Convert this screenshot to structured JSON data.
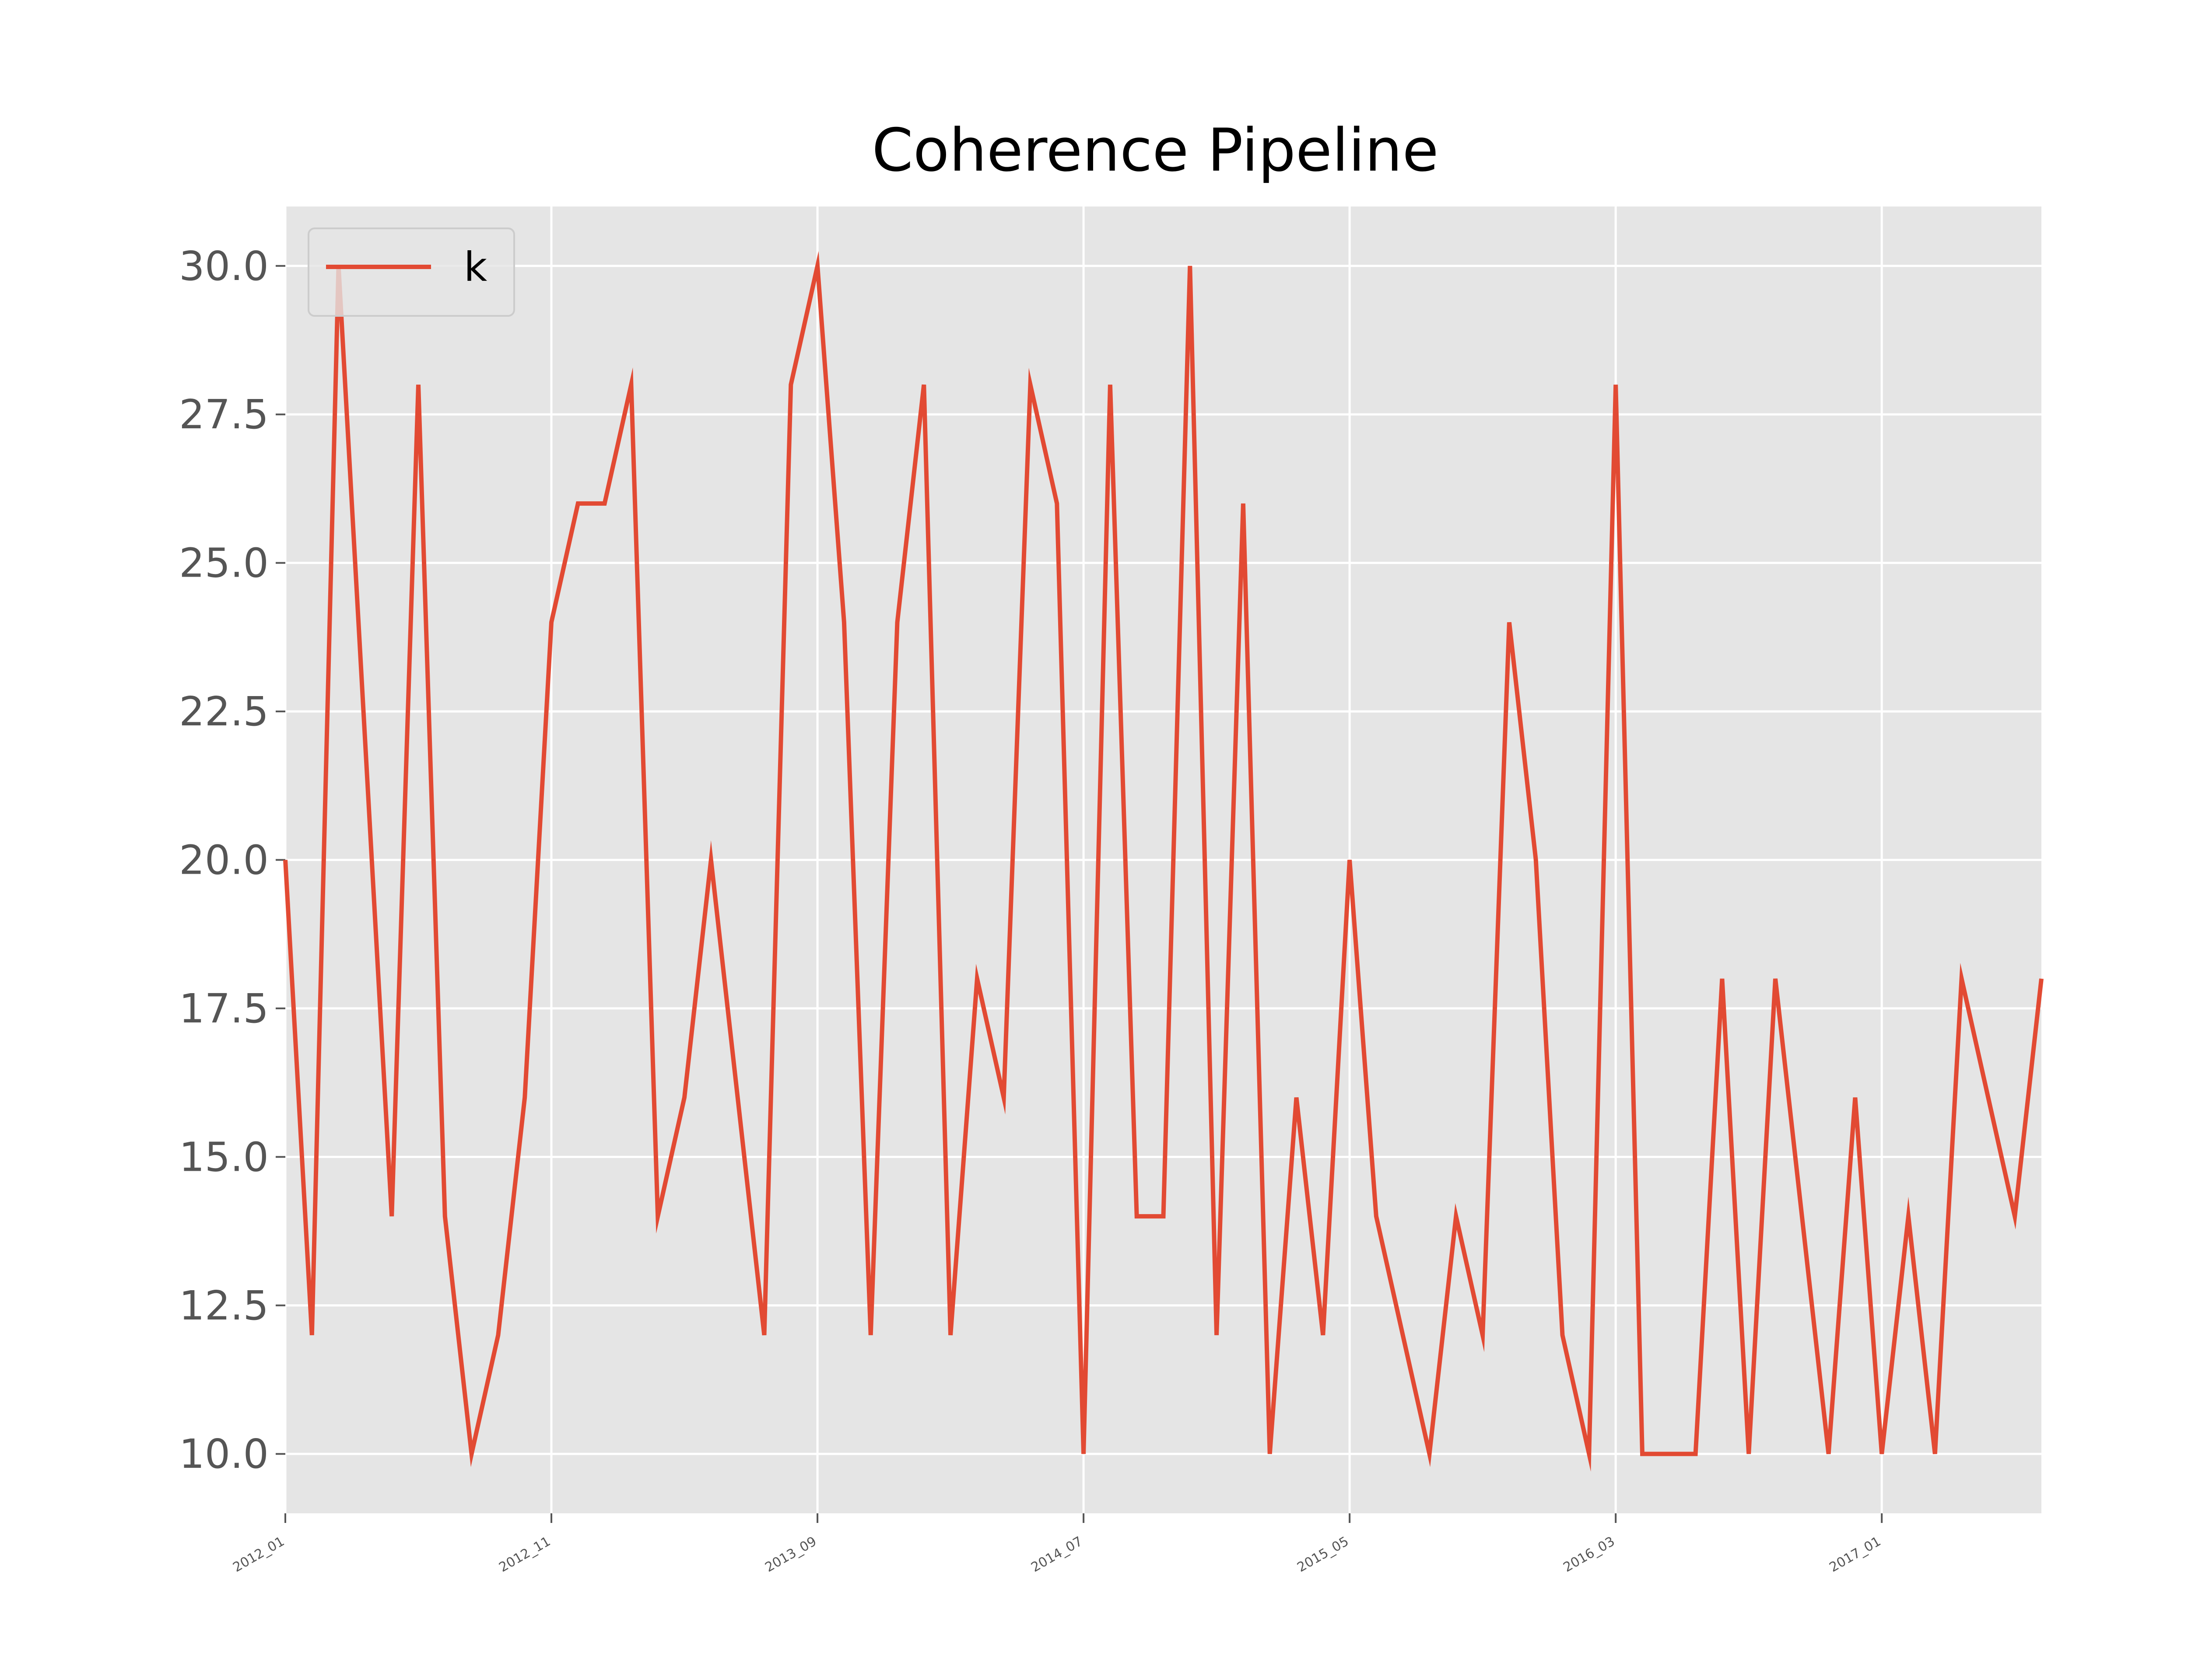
{
  "chart_data": {
    "type": "line",
    "title": "Coherence Pipeline",
    "xlabel": "",
    "ylabel": "",
    "x_tick_labels": [
      "2012_01",
      "2012_11",
      "2013_09",
      "2014_07",
      "2015_05",
      "2016_03",
      "2017_01"
    ],
    "y_tick_labels": [
      "10.0",
      "12.5",
      "15.0",
      "17.5",
      "20.0",
      "22.5",
      "25.0",
      "27.5",
      "30.0"
    ],
    "ylim": [
      9.0,
      31.0
    ],
    "xlim": [
      "2012_01",
      "2017_07"
    ],
    "x_axis": "monthly dates (YYYY_MM), one point per month",
    "grid": true,
    "legend_position": "top-left",
    "series": [
      {
        "name": "k",
        "color": "#E24A33",
        "x": [
          "2012_01",
          "2012_02",
          "2012_03",
          "2012_04",
          "2012_05",
          "2012_06",
          "2012_07",
          "2012_08",
          "2012_09",
          "2012_10",
          "2012_11",
          "2012_12",
          "2013_01",
          "2013_02",
          "2013_03",
          "2013_04",
          "2013_05",
          "2013_06",
          "2013_07",
          "2013_08",
          "2013_09",
          "2013_10",
          "2013_11",
          "2013_12",
          "2014_01",
          "2014_02",
          "2014_03",
          "2014_04",
          "2014_05",
          "2014_06",
          "2014_07",
          "2014_08",
          "2014_09",
          "2014_10",
          "2014_11",
          "2014_12",
          "2015_01",
          "2015_02",
          "2015_03",
          "2015_04",
          "2015_05",
          "2015_06",
          "2015_07",
          "2015_08",
          "2015_09",
          "2015_10",
          "2015_11",
          "2015_12",
          "2016_01",
          "2016_02",
          "2016_03",
          "2016_04",
          "2016_05",
          "2016_06",
          "2016_07",
          "2016_08",
          "2016_09",
          "2016_10",
          "2016_11",
          "2016_12",
          "2017_01",
          "2017_02",
          "2017_03",
          "2017_04",
          "2017_05",
          "2017_06",
          "2017_07"
        ],
        "values": [
          20,
          12,
          30,
          22,
          14,
          28,
          14,
          10,
          12,
          16,
          24,
          26,
          26,
          28,
          14,
          16,
          20,
          16,
          12,
          28,
          30,
          24,
          12,
          24,
          28,
          12,
          18,
          16,
          28,
          26,
          10,
          28,
          14,
          14,
          30,
          12,
          26,
          10,
          16,
          12,
          20,
          14,
          12,
          10,
          14,
          12,
          24,
          20,
          12,
          10,
          28,
          10,
          10,
          10,
          18,
          10,
          18,
          14,
          10,
          16,
          10,
          14,
          10,
          18,
          16,
          14,
          18
        ]
      }
    ]
  },
  "colors": {
    "plot_background": "#E5E5E5",
    "grid": "#FFFFFF",
    "line": "#E24A33",
    "tick_text": "#555555"
  }
}
